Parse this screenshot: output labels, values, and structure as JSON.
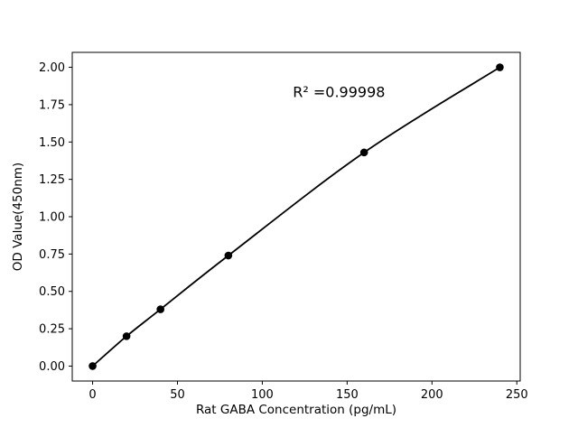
{
  "chart_data": {
    "type": "scatter",
    "x": [
      0,
      20,
      40,
      80,
      160,
      240
    ],
    "y": [
      0.0,
      0.2,
      0.38,
      0.74,
      1.43,
      2.0
    ],
    "line": true,
    "title": "",
    "xlabel": "Rat GABA Concentration (pg/mL)",
    "ylabel": "OD Value(450nm)",
    "xlim": [
      -12,
      252
    ],
    "ylim": [
      -0.1,
      2.1
    ],
    "xticks": [
      0,
      50,
      100,
      150,
      200,
      250
    ],
    "yticks": [
      0.0,
      0.25,
      0.5,
      0.75,
      1.0,
      1.25,
      1.5,
      1.75,
      2.0
    ],
    "annotation": {
      "text": "R² =0.99998",
      "x": 118,
      "y": 1.8
    },
    "marker_color": "#000000",
    "line_color": "#000000",
    "frame_color": "#000000",
    "background": "#ffffff",
    "grid": false,
    "legend": null
  }
}
